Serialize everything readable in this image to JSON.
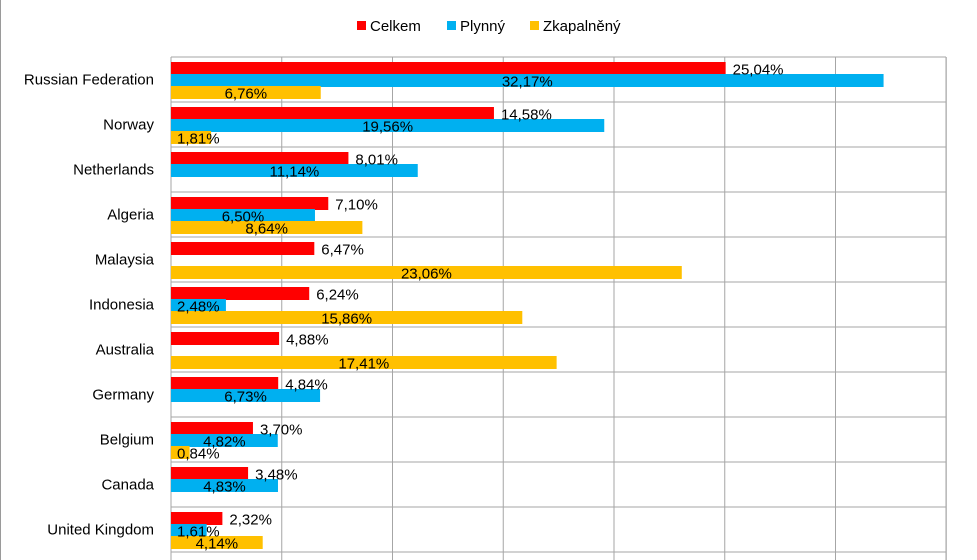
{
  "chart_data": {
    "type": "bar",
    "orientation": "horizontal",
    "grid": true,
    "legend_position": "top",
    "categories": [
      "Russian Federation",
      "Norway",
      "Netherlands",
      "Algeria",
      "Malaysia",
      "Indonesia",
      "Australia",
      "Germany",
      "Belgium",
      "Canada",
      "United Kingdom"
    ],
    "series": [
      {
        "name": "Celkem",
        "color": "#ff0000",
        "values": [
          25.04,
          14.58,
          8.01,
          7.1,
          6.47,
          6.24,
          4.88,
          4.84,
          3.7,
          3.48,
          2.32
        ],
        "labels": [
          "25,04%",
          "14,58%",
          "8,01%",
          "7,10%",
          "6,47%",
          "6,24%",
          "4,88%",
          "4,84%",
          "3,70%",
          "3,48%",
          "2,32%"
        ]
      },
      {
        "name": "Plynný",
        "color": "#00b0f0",
        "values": [
          32.17,
          19.56,
          11.14,
          6.5,
          null,
          2.48,
          null,
          6.73,
          4.82,
          4.83,
          1.61
        ],
        "labels": [
          "32,17%",
          "19,56%",
          "11,14%",
          "6,50%",
          null,
          "2,48%",
          null,
          "6,73%",
          "4,82%",
          "4,83%",
          "1,61%"
        ]
      },
      {
        "name": "Zkapalněný",
        "color": "#ffc000",
        "values": [
          6.76,
          1.81,
          null,
          8.64,
          23.06,
          15.86,
          17.41,
          null,
          0.84,
          null,
          4.14
        ],
        "labels": [
          "6,76%",
          "1,81%",
          null,
          "8,64%",
          "23,06%",
          "15,86%",
          "17,41%",
          null,
          "0,84%",
          null,
          "4,14%"
        ]
      }
    ],
    "xlim": [
      0,
      35
    ]
  }
}
